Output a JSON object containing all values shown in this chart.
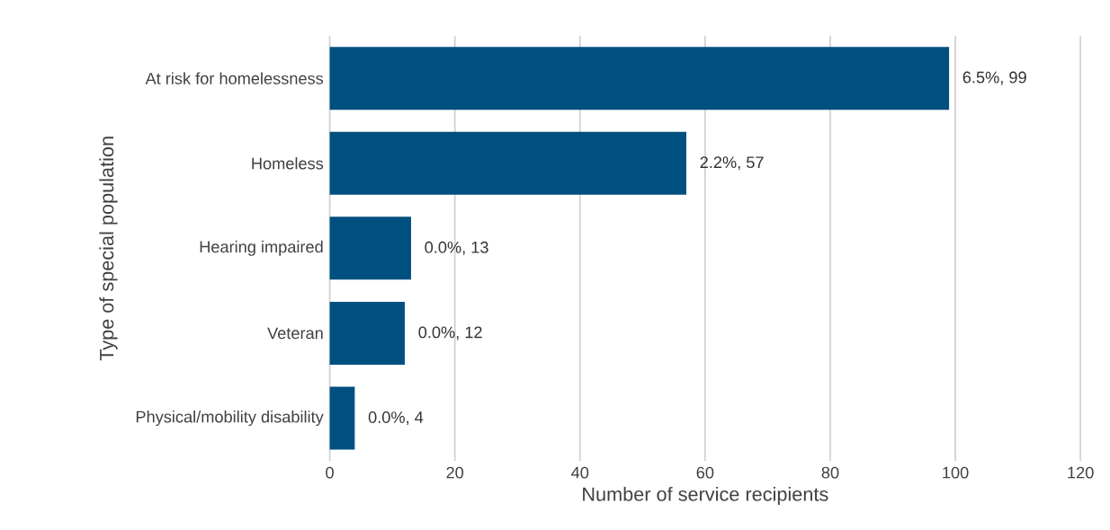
{
  "chart_data": {
    "type": "bar",
    "orientation": "horizontal",
    "xlabel": "Number of service recipients",
    "ylabel": "Type of special population",
    "categories": [
      "At risk for homelessness",
      "Homeless",
      "Hearing impaired",
      "Veteran",
      "Physical/mobility disability"
    ],
    "values": [
      99,
      57,
      13,
      12,
      4
    ],
    "value_labels": [
      "6.5%, 99",
      "2.2%, 57",
      "0.0%, 13",
      "0.0%, 12",
      "0.0%, 4"
    ],
    "color": "#00507f",
    "xlim": [
      0,
      120
    ],
    "xticks": [
      0,
      20,
      40,
      60,
      80,
      100,
      120
    ],
    "grid": "x"
  }
}
